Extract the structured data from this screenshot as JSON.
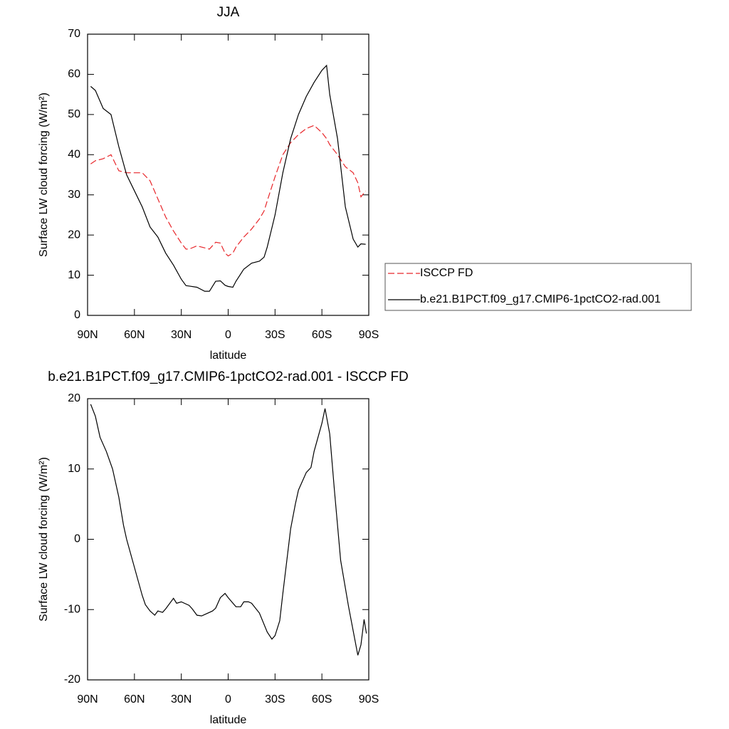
{
  "chart_data": [
    {
      "type": "line",
      "title": "JJA",
      "x_label": "latitude",
      "y_label": "Surface LW cloud forcing (W/m²)",
      "x": [
        88,
        85,
        80,
        75,
        70,
        65,
        60,
        55,
        50,
        45,
        40,
        35,
        30,
        27,
        25,
        20,
        15,
        12,
        8,
        5,
        2,
        0,
        -3,
        -5,
        -10,
        -15,
        -20,
        -23,
        -25,
        -30,
        -35,
        -40,
        -45,
        -50,
        -55,
        -60,
        -63,
        -65,
        -70,
        -75,
        -80,
        -83,
        -85,
        -88
      ],
      "series": [
        {
          "name": "ISCCP FD",
          "color": "#e8262a",
          "dash": true,
          "values": [
            37.7,
            38.5,
            39,
            40,
            36,
            35.5,
            35.5,
            35.5,
            33.5,
            29,
            24.5,
            21,
            18,
            16.5,
            16.5,
            17.3,
            16.8,
            16.5,
            18.2,
            18,
            15.5,
            14.8,
            15.5,
            17,
            19.5,
            21.5,
            24,
            26,
            28.5,
            34.5,
            40,
            43,
            45,
            46.5,
            47.3,
            45.5,
            44,
            42.5,
            40,
            37,
            35.5,
            33,
            29.5,
            31
          ]
        },
        {
          "name": "b.e21.B1PCT.f09_g17.CMIP6-1pctCO2-rad.001",
          "color": "#000000",
          "dash": false,
          "values": [
            57,
            56,
            51.5,
            50,
            42,
            35,
            31,
            27,
            22,
            19.5,
            15.5,
            12.5,
            9,
            7.4,
            7.3,
            7,
            6,
            6,
            8.5,
            8.6,
            7.5,
            7.2,
            7,
            8.5,
            11.5,
            13,
            13.5,
            14.5,
            17,
            25,
            35.5,
            44,
            50,
            54.5,
            58,
            61,
            62.2,
            55,
            44,
            27,
            19,
            17,
            17.8,
            17.7
          ]
        }
      ],
      "xlim": [
        90,
        -90
      ],
      "xticks": [
        {
          "value": 90,
          "label": "90N"
        },
        {
          "value": 60,
          "label": "60N"
        },
        {
          "value": 30,
          "label": "30N"
        },
        0,
        {
          "value": -30,
          "label": "30S"
        },
        {
          "value": -60,
          "label": "60S"
        },
        {
          "value": -90,
          "label": "90S"
        }
      ],
      "ylim": [
        0,
        70
      ],
      "yticks": [
        0,
        10,
        20,
        30,
        40,
        50,
        60,
        70
      ],
      "legend": "right"
    },
    {
      "type": "line",
      "title": "b.e21.B1PCT.f09_g17.CMIP6-1pctCO2-rad.001 - ISCCP FD",
      "x_label": "latitude",
      "y_label": "Surface LW cloud forcing (W/m²)",
      "x": [
        88,
        85,
        82,
        78,
        74,
        70,
        67,
        65,
        60,
        55,
        53,
        50,
        47,
        45,
        42,
        40,
        35,
        33,
        30,
        25,
        23,
        20,
        17,
        15,
        10,
        8,
        5,
        2,
        0,
        -5,
        -8,
        -10,
        -13,
        -15,
        -20,
        -25,
        -28,
        -30,
        -33,
        -35,
        -40,
        -43,
        -45,
        -50,
        -53,
        -55,
        -60,
        -62,
        -65,
        -68,
        -72,
        -77,
        -80,
        -83,
        -85,
        -87,
        -88.5
      ],
      "series": [
        {
          "color": "#000000",
          "dash": false,
          "values": [
            19.2,
            17.5,
            14.5,
            12.5,
            10,
            6,
            2,
            0,
            -4,
            -8,
            -9.3,
            -10.2,
            -10.8,
            -10.2,
            -10.4,
            -9.9,
            -8.4,
            -9.1,
            -8.9,
            -9.4,
            -9.9,
            -10.8,
            -10.9,
            -10.7,
            -10.2,
            -9.8,
            -8.3,
            -7.7,
            -8.3,
            -9.6,
            -9.6,
            -8.9,
            -8.9,
            -9.1,
            -10.5,
            -13.2,
            -14.2,
            -13.7,
            -11.6,
            -7.7,
            1.5,
            5,
            7,
            9.5,
            10.2,
            12.5,
            16.5,
            18.6,
            15,
            7,
            -3,
            -9.5,
            -13,
            -16.5,
            -15,
            -11.4,
            -13.4
          ]
        }
      ],
      "xlim": [
        90,
        -90
      ],
      "xticks": [
        {
          "value": 90,
          "label": "90N"
        },
        {
          "value": 60,
          "label": "60N"
        },
        {
          "value": 30,
          "label": "30N"
        },
        0,
        {
          "value": -30,
          "label": "30S"
        },
        {
          "value": -60,
          "label": "60S"
        },
        {
          "value": -90,
          "label": "90S"
        }
      ],
      "ylim": [
        -20,
        20
      ],
      "yticks": [
        -20,
        -10,
        0,
        10,
        20
      ]
    }
  ]
}
